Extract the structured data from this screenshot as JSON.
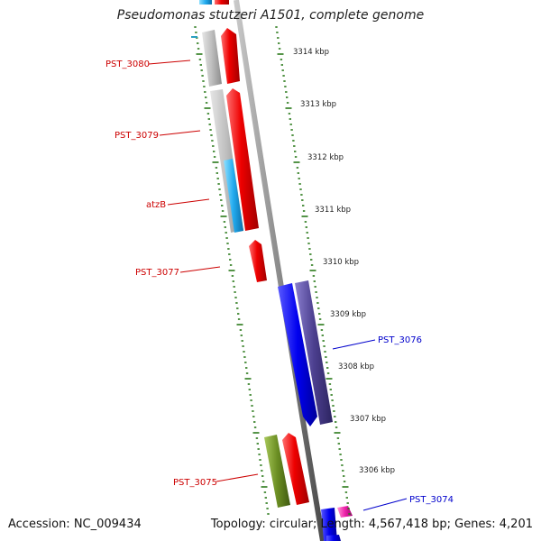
{
  "title": "Pseudomonas stutzeri A1501, complete genome",
  "footer": {
    "accession": "Accession: NC_009434",
    "stats": "Topology: circular; Length: 4,567,418 bp; Genes: 4,201"
  },
  "scale_labels": [
    "3314 kbp",
    "3313 kbp",
    "3312 kbp",
    "3311 kbp",
    "3310 kbp",
    "3309 kbp",
    "3308 kbp",
    "3307 kbp",
    "3306 kbp"
  ],
  "gene_labels": [
    {
      "name": "PST_3080",
      "color": "#cc0000"
    },
    {
      "name": "PST_3079",
      "color": "#cc0000"
    },
    {
      "name": "atzB",
      "color": "#cc0000"
    },
    {
      "name": "PST_3077",
      "color": "#cc0000"
    },
    {
      "name": "PST_3076",
      "color": "#0000cc"
    },
    {
      "name": "PST_3075",
      "color": "#cc0000"
    },
    {
      "name": "PST_3074",
      "color": "#0000cc"
    }
  ],
  "colors": {
    "tick_green": "#2a7a1a",
    "gene_red": "#ee0000",
    "gene_gray": "#b8b8b8",
    "gene_cyan": "#22aaee",
    "gene_blue": "#0000ee",
    "gene_purple": "#4c3f8f",
    "gene_olive": "#6b8e23",
    "gene_magenta": "#ee22aa",
    "backbone": "#8a8a8a"
  }
}
